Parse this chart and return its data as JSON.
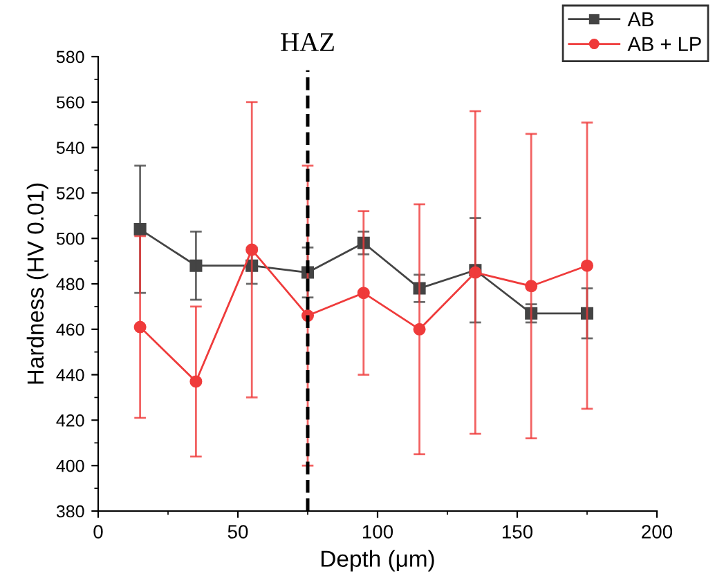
{
  "chart_data": {
    "type": "line",
    "xlabel": "Depth (μm)",
    "ylabel": "Hardness (HV 0.01)",
    "xlim": [
      0,
      200
    ],
    "xticks": [
      0,
      50,
      100,
      150,
      200
    ],
    "ylim": [
      380,
      580
    ],
    "yticks": [
      380,
      400,
      420,
      440,
      460,
      480,
      500,
      520,
      540,
      560,
      580
    ],
    "x": [
      15,
      35,
      55,
      75,
      95,
      115,
      135,
      155,
      175
    ],
    "series": [
      {
        "name": "AB",
        "color": "#444444",
        "marker": "square",
        "values": [
          504,
          488,
          488,
          485,
          498,
          478,
          486,
          467,
          467
        ],
        "errors": [
          28,
          15,
          8,
          11,
          5,
          6,
          23,
          4,
          11
        ]
      },
      {
        "name": "AB + LP",
        "color": "#ef3b3b",
        "marker": "circle",
        "values": [
          461,
          437,
          495,
          466,
          476,
          460,
          485,
          479,
          488
        ],
        "errors": [
          40,
          33,
          65,
          66,
          36,
          55,
          71,
          67,
          63
        ]
      }
    ],
    "ref_lines": [
      {
        "axis": "x",
        "value": 75,
        "label": "HAZ",
        "color": "#000000",
        "line_style": "dashed"
      }
    ],
    "legend": "top right",
    "grid": false
  }
}
